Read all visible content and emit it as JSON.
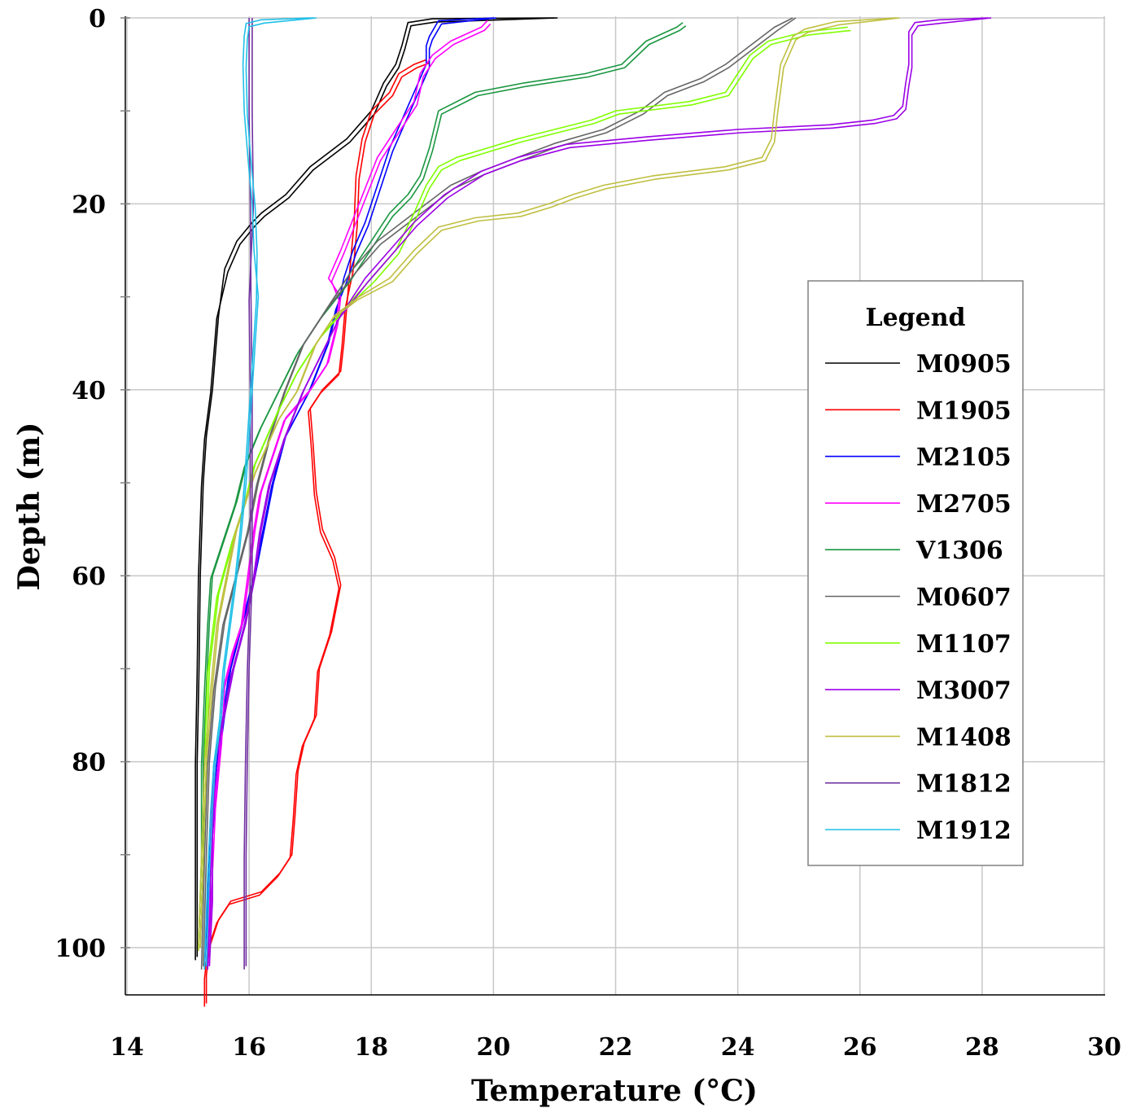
{
  "chart_data": {
    "type": "line",
    "title": "",
    "xlabel": "Temperature (°C)",
    "ylabel": "Depth (m)",
    "xlim": [
      14,
      30
    ],
    "ylim": [
      105,
      0
    ],
    "x_ticks": [
      "14",
      "16",
      "18",
      "20",
      "22",
      "24",
      "26",
      "28",
      "30"
    ],
    "y_ticks": [
      "0",
      "20",
      "40",
      "60",
      "80",
      "100"
    ],
    "grid": true,
    "legend": {
      "title": "Legend",
      "placement": "right"
    },
    "series": [
      {
        "name": "M0905",
        "color": "#000000",
        "points": [
          [
            21.0,
            0
          ],
          [
            19.0,
            0.1
          ],
          [
            18.6,
            0.5
          ],
          [
            18.5,
            3
          ],
          [
            18.4,
            5
          ],
          [
            18.2,
            7
          ],
          [
            18.0,
            10
          ],
          [
            17.6,
            13
          ],
          [
            17.0,
            16
          ],
          [
            16.6,
            19
          ],
          [
            16.2,
            21
          ],
          [
            16.05,
            22
          ],
          [
            15.8,
            24
          ],
          [
            15.6,
            27
          ],
          [
            15.5,
            32
          ],
          [
            15.45,
            36
          ],
          [
            15.4,
            40
          ],
          [
            15.3,
            45
          ],
          [
            15.25,
            50
          ],
          [
            15.2,
            60
          ],
          [
            15.18,
            70
          ],
          [
            15.15,
            80
          ],
          [
            15.15,
            90
          ],
          [
            15.15,
            101
          ]
        ]
      },
      {
        "name": "M1905",
        "color": "#ff0000",
        "points": [
          [
            18.9,
            4.5
          ],
          [
            18.7,
            5
          ],
          [
            18.45,
            6
          ],
          [
            18.3,
            8
          ],
          [
            18.0,
            10
          ],
          [
            17.85,
            13
          ],
          [
            17.75,
            17
          ],
          [
            17.72,
            22
          ],
          [
            17.65,
            27
          ],
          [
            17.6,
            31
          ],
          [
            17.55,
            35
          ],
          [
            17.5,
            38
          ],
          [
            17.2,
            40
          ],
          [
            17.0,
            42
          ],
          [
            17.05,
            46
          ],
          [
            17.1,
            51
          ],
          [
            17.2,
            55
          ],
          [
            17.4,
            58
          ],
          [
            17.5,
            61
          ],
          [
            17.35,
            66
          ],
          [
            17.15,
            70
          ],
          [
            17.1,
            75
          ],
          [
            16.9,
            78
          ],
          [
            16.8,
            81
          ],
          [
            16.75,
            86
          ],
          [
            16.7,
            90
          ],
          [
            16.5,
            92
          ],
          [
            16.2,
            94
          ],
          [
            15.7,
            95
          ],
          [
            15.5,
            97
          ],
          [
            15.35,
            100
          ],
          [
            15.3,
            103
          ],
          [
            15.3,
            106
          ]
        ]
      },
      {
        "name": "M2105",
        "color": "#0000ff",
        "points": [
          [
            20.0,
            0
          ],
          [
            19.1,
            0.3
          ],
          [
            18.95,
            2
          ],
          [
            18.9,
            3
          ],
          [
            18.9,
            5
          ],
          [
            18.7,
            8
          ],
          [
            18.5,
            11
          ],
          [
            18.3,
            14
          ],
          [
            18.1,
            18
          ],
          [
            17.9,
            22
          ],
          [
            17.7,
            25
          ],
          [
            17.55,
            28
          ],
          [
            17.45,
            31
          ],
          [
            17.3,
            35
          ],
          [
            17.0,
            40
          ],
          [
            16.6,
            45
          ],
          [
            16.4,
            50
          ],
          [
            16.25,
            55
          ],
          [
            16.1,
            60
          ],
          [
            15.9,
            65
          ],
          [
            15.7,
            70
          ],
          [
            15.6,
            75
          ],
          [
            15.5,
            80
          ],
          [
            15.4,
            88
          ],
          [
            15.35,
            95
          ],
          [
            15.3,
            102
          ]
        ]
      },
      {
        "name": "M2705",
        "color": "#ff00ff",
        "points": [
          [
            19.9,
            0.3
          ],
          [
            19.8,
            1
          ],
          [
            19.3,
            2.5
          ],
          [
            19.0,
            4
          ],
          [
            18.8,
            6
          ],
          [
            18.7,
            9
          ],
          [
            18.4,
            12
          ],
          [
            18.1,
            15
          ],
          [
            17.8,
            20
          ],
          [
            17.5,
            25
          ],
          [
            17.3,
            28
          ],
          [
            17.5,
            30
          ],
          [
            17.45,
            33
          ],
          [
            17.3,
            37
          ],
          [
            17.0,
            40
          ],
          [
            16.6,
            43
          ],
          [
            16.4,
            47
          ],
          [
            16.2,
            51
          ],
          [
            16.1,
            55
          ],
          [
            16.0,
            60
          ],
          [
            15.9,
            65
          ],
          [
            15.75,
            68
          ],
          [
            15.6,
            72
          ],
          [
            15.55,
            78
          ],
          [
            15.45,
            85
          ],
          [
            15.4,
            92
          ],
          [
            15.35,
            102
          ]
        ]
      },
      {
        "name": "V1306",
        "color": "#1a9641",
        "points": [
          [
            23.1,
            0.5
          ],
          [
            23.0,
            1
          ],
          [
            22.5,
            2.5
          ],
          [
            22.1,
            5
          ],
          [
            21.5,
            6
          ],
          [
            20.5,
            7
          ],
          [
            19.7,
            8
          ],
          [
            19.1,
            10
          ],
          [
            18.95,
            14
          ],
          [
            18.8,
            17
          ],
          [
            18.6,
            19
          ],
          [
            18.3,
            21
          ],
          [
            18.0,
            24
          ],
          [
            17.6,
            28
          ],
          [
            17.2,
            32
          ],
          [
            16.8,
            36
          ],
          [
            16.5,
            40
          ],
          [
            16.2,
            44
          ],
          [
            15.95,
            48
          ],
          [
            15.8,
            52
          ],
          [
            15.6,
            56
          ],
          [
            15.4,
            60
          ],
          [
            15.35,
            65
          ],
          [
            15.3,
            72
          ],
          [
            15.25,
            80
          ],
          [
            15.25,
            90
          ],
          [
            15.2,
            100
          ]
        ]
      },
      {
        "name": "M0607",
        "color": "#666666",
        "points": [
          [
            24.9,
            0
          ],
          [
            24.6,
            1
          ],
          [
            24.2,
            3
          ],
          [
            23.8,
            5
          ],
          [
            23.4,
            6.5
          ],
          [
            22.8,
            8
          ],
          [
            22.4,
            10
          ],
          [
            21.8,
            12
          ],
          [
            21.0,
            13.5
          ],
          [
            20.4,
            15
          ],
          [
            19.8,
            16.5
          ],
          [
            19.3,
            18
          ],
          [
            18.9,
            20
          ],
          [
            18.5,
            22
          ],
          [
            18.1,
            24
          ],
          [
            17.7,
            27
          ],
          [
            17.3,
            31
          ],
          [
            16.9,
            35
          ],
          [
            16.6,
            40
          ],
          [
            16.35,
            45
          ],
          [
            16.15,
            50
          ],
          [
            16.0,
            55
          ],
          [
            15.8,
            60
          ],
          [
            15.6,
            65
          ],
          [
            15.45,
            72
          ],
          [
            15.35,
            80
          ],
          [
            15.3,
            90
          ],
          [
            15.25,
            102
          ]
        ]
      },
      {
        "name": "M1107",
        "color": "#80ff00",
        "points": [
          [
            25.8,
            1
          ],
          [
            25.1,
            1.5
          ],
          [
            24.5,
            2.5
          ],
          [
            24.2,
            4
          ],
          [
            24.0,
            6
          ],
          [
            23.8,
            8
          ],
          [
            23.2,
            9
          ],
          [
            22.6,
            9.5
          ],
          [
            22.0,
            10
          ],
          [
            21.6,
            11
          ],
          [
            21.0,
            12
          ],
          [
            20.4,
            13
          ],
          [
            19.9,
            14
          ],
          [
            19.4,
            15
          ],
          [
            19.1,
            16
          ],
          [
            18.9,
            18
          ],
          [
            18.7,
            21
          ],
          [
            18.4,
            25
          ],
          [
            18.0,
            28
          ],
          [
            17.6,
            31
          ],
          [
            17.2,
            34
          ],
          [
            16.8,
            38
          ],
          [
            16.5,
            42
          ],
          [
            16.3,
            45
          ],
          [
            16.1,
            48
          ],
          [
            15.95,
            52
          ],
          [
            15.75,
            56
          ],
          [
            15.5,
            62
          ],
          [
            15.35,
            70
          ],
          [
            15.3,
            80
          ],
          [
            15.25,
            90
          ],
          [
            15.2,
            100
          ]
        ]
      },
      {
        "name": "M3007",
        "color": "#9b00e6",
        "points": [
          [
            28.1,
            0
          ],
          [
            27.3,
            0.2
          ],
          [
            26.9,
            0.5
          ],
          [
            26.8,
            1.5
          ],
          [
            26.8,
            3
          ],
          [
            26.8,
            5
          ],
          [
            26.75,
            7
          ],
          [
            26.7,
            9.5
          ],
          [
            26.55,
            10.5
          ],
          [
            26.2,
            11
          ],
          [
            25.5,
            11.5
          ],
          [
            24.0,
            12
          ],
          [
            22.5,
            12.8
          ],
          [
            21.2,
            13.6
          ],
          [
            20.4,
            15
          ],
          [
            19.8,
            16.5
          ],
          [
            19.2,
            19
          ],
          [
            18.7,
            22
          ],
          [
            18.3,
            25
          ],
          [
            17.9,
            28
          ],
          [
            17.5,
            32
          ],
          [
            17.2,
            36
          ],
          [
            16.9,
            40
          ],
          [
            16.6,
            45
          ],
          [
            16.35,
            50
          ],
          [
            16.2,
            55
          ],
          [
            16.1,
            60
          ],
          [
            15.95,
            65
          ],
          [
            15.75,
            70
          ],
          [
            15.6,
            75
          ],
          [
            15.45,
            80
          ],
          [
            15.4,
            88
          ],
          [
            15.4,
            95
          ],
          [
            15.35,
            102
          ]
        ]
      },
      {
        "name": "M1408",
        "color": "#bfbf40",
        "points": [
          [
            26.6,
            0
          ],
          [
            25.6,
            0.4
          ],
          [
            25.1,
            1.2
          ],
          [
            24.9,
            2
          ],
          [
            24.7,
            5
          ],
          [
            24.6,
            10
          ],
          [
            24.55,
            13
          ],
          [
            24.4,
            15
          ],
          [
            23.8,
            16
          ],
          [
            22.6,
            17
          ],
          [
            21.8,
            18
          ],
          [
            21.3,
            19
          ],
          [
            20.9,
            20
          ],
          [
            20.4,
            21
          ],
          [
            19.7,
            21.5
          ],
          [
            19.1,
            22.5
          ],
          [
            18.7,
            25
          ],
          [
            18.3,
            28
          ],
          [
            17.8,
            30
          ],
          [
            17.4,
            32
          ],
          [
            17.1,
            35
          ],
          [
            16.8,
            40
          ],
          [
            16.5,
            43
          ],
          [
            16.3,
            46
          ],
          [
            16.1,
            49
          ],
          [
            15.95,
            52
          ],
          [
            15.8,
            55
          ],
          [
            15.65,
            60
          ],
          [
            15.5,
            65
          ],
          [
            15.4,
            72
          ],
          [
            15.3,
            80
          ],
          [
            15.25,
            90
          ],
          [
            15.2,
            100
          ]
        ]
      },
      {
        "name": "M1812",
        "color": "#7030a0",
        "points": [
          [
            16.0,
            0
          ],
          [
            16.0,
            10
          ],
          [
            16.02,
            20
          ],
          [
            16.03,
            30
          ],
          [
            16.05,
            40
          ],
          [
            16.05,
            50
          ],
          [
            16.05,
            60
          ],
          [
            16.0,
            70
          ],
          [
            15.97,
            80
          ],
          [
            15.95,
            90
          ],
          [
            15.95,
            102
          ]
        ]
      },
      {
        "name": "M1912",
        "color": "#1fc0e8",
        "points": [
          [
            17.05,
            0
          ],
          [
            16.2,
            0.2
          ],
          [
            15.95,
            0.6
          ],
          [
            15.92,
            2
          ],
          [
            15.9,
            5
          ],
          [
            15.92,
            10
          ],
          [
            15.98,
            15
          ],
          [
            16.05,
            20
          ],
          [
            16.08,
            25
          ],
          [
            16.15,
            30
          ],
          [
            16.1,
            35
          ],
          [
            16.05,
            40
          ],
          [
            16.0,
            45
          ],
          [
            15.95,
            50
          ],
          [
            15.88,
            55
          ],
          [
            15.8,
            60
          ],
          [
            15.7,
            65
          ],
          [
            15.6,
            70
          ],
          [
            15.55,
            75
          ],
          [
            15.45,
            80
          ],
          [
            15.4,
            85
          ],
          [
            15.35,
            92
          ],
          [
            15.3,
            102
          ]
        ]
      }
    ]
  }
}
